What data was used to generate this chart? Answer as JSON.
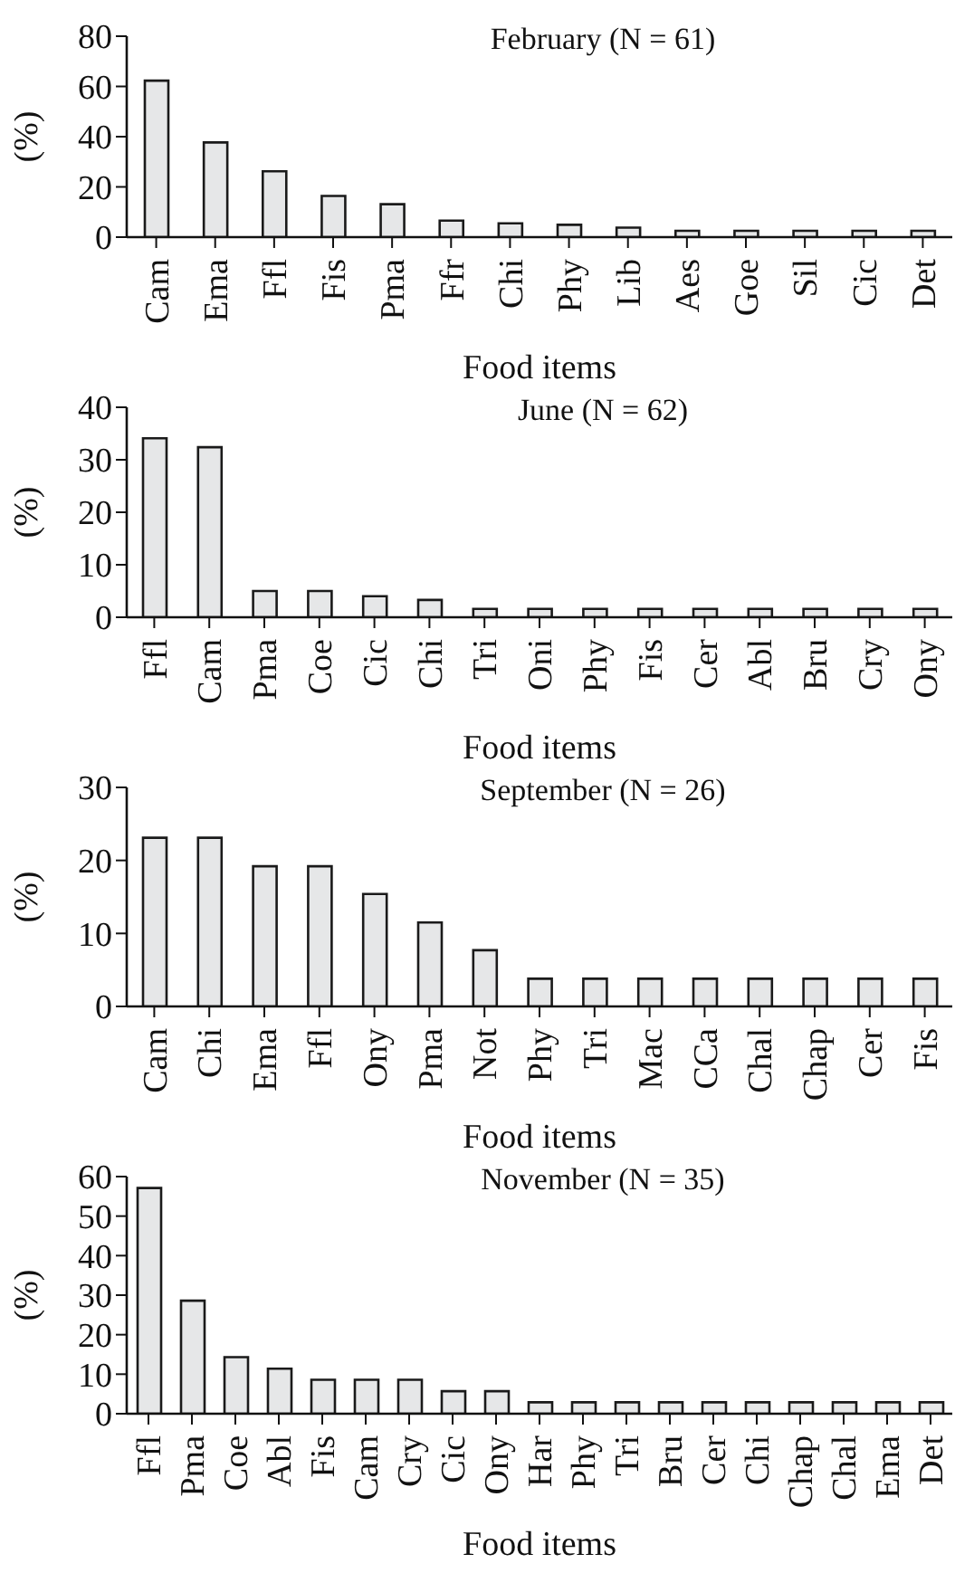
{
  "chart_data": [
    {
      "type": "bar",
      "title": "February (N = 61)",
      "xlabel": "Food items",
      "ylabel": "(%)",
      "categories": [
        "Cam",
        "Ema",
        "Ffl",
        "Fis",
        "Pma",
        "Ffr",
        "Chi",
        "Phy",
        "Lib",
        "Aes",
        "Goe",
        "Sil",
        "Cic",
        "Det"
      ],
      "values": [
        62.3,
        37.7,
        26.2,
        16.4,
        13.1,
        6.6,
        5.5,
        4.9,
        3.8,
        2.5,
        2.5,
        2.5,
        2.5,
        2.5
      ],
      "color": "#e6e7e8",
      "ylim": [
        0,
        80
      ],
      "yticks": [
        0,
        20,
        40,
        60,
        80
      ],
      "grid": false,
      "legend": false
    },
    {
      "type": "bar",
      "title": "June (N = 62)",
      "xlabel": "Food items",
      "ylabel": "(%)",
      "categories": [
        "Ffl",
        "Cam",
        "Pma",
        "Coe",
        "Cic",
        "Chi",
        "Tri",
        "Oni",
        "Phy",
        "Fis",
        "Cer",
        "Abl",
        "Bru",
        "Cry",
        "Ony"
      ],
      "values": [
        34.1,
        32.4,
        5,
        5,
        4,
        3.3,
        1.6,
        1.6,
        1.6,
        1.6,
        1.6,
        1.6,
        1.6,
        1.6,
        1.6
      ],
      "color": "#e6e7e8",
      "ylim": [
        0,
        40
      ],
      "yticks": [
        0,
        10,
        20,
        30,
        40
      ],
      "grid": false,
      "legend": false
    },
    {
      "type": "bar",
      "title": "September (N = 26)",
      "xlabel": "Food items",
      "ylabel": "(%)",
      "categories": [
        "Cam",
        "Chi",
        "Ema",
        "Ffl",
        "Ony",
        "Pma",
        "Not",
        "Phy",
        "Tri",
        "Mac",
        "CCa",
        "Chal",
        "Chap",
        "Cer",
        "Fis"
      ],
      "values": [
        23.1,
        23.1,
        19.2,
        19.2,
        15.4,
        11.5,
        7.7,
        3.8,
        3.8,
        3.8,
        3.8,
        3.8,
        3.8,
        3.8,
        3.8
      ],
      "color": "#e6e7e8",
      "ylim": [
        0,
        30
      ],
      "yticks": [
        0,
        10,
        20,
        30
      ],
      "grid": false,
      "legend": false
    },
    {
      "type": "bar",
      "title": "November (N = 35)",
      "xlabel": "Food items",
      "ylabel": "(%)",
      "categories": [
        "Ffl",
        "Pma",
        "Coe",
        "Abl",
        "Fis",
        "Cam",
        "Cry",
        "Cic",
        "Ony",
        "Har",
        "Phy",
        "Tri",
        "Bru",
        "Cer",
        "Chi",
        "Chap",
        "Chal",
        "Ema",
        "Det"
      ],
      "values": [
        57.1,
        28.6,
        14.3,
        11.4,
        8.6,
        8.6,
        8.6,
        5.7,
        5.7,
        2.9,
        2.9,
        2.9,
        2.9,
        2.9,
        2.9,
        2.9,
        2.9,
        2.9,
        2.9
      ],
      "color": "#e6e7e8",
      "ylim": [
        0,
        60
      ],
      "yticks": [
        0,
        10,
        20,
        30,
        40,
        50,
        60
      ],
      "grid": false,
      "legend": false
    }
  ]
}
